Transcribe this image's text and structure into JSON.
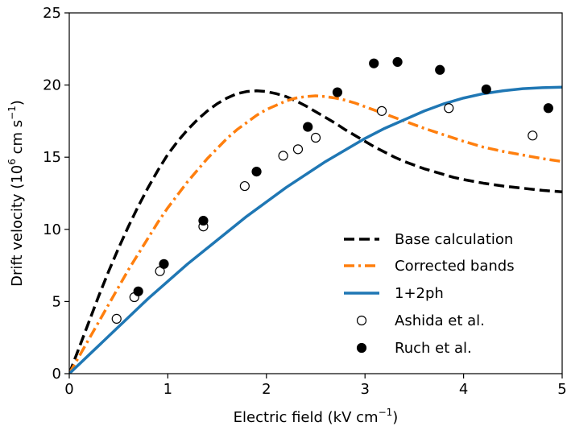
{
  "chart_data": {
    "type": "line",
    "xlabel": "Electric field (kV cm",
    "xlabel_sup": "−1",
    "xlabel_end": ")",
    "ylabel": "Drift velocity (10",
    "ylabel_sup1": "6",
    "ylabel_mid": " cm s",
    "ylabel_sup2": "−1",
    "ylabel_end": ")",
    "xlim": [
      0,
      5
    ],
    "ylim": [
      0,
      25
    ],
    "xticks": [
      0,
      1,
      2,
      3,
      4,
      5
    ],
    "yticks": [
      0,
      5,
      10,
      15,
      20,
      25
    ],
    "grid": false,
    "legend_position": "lower-right",
    "series": [
      {
        "name": "Base calculation",
        "style": "dashed",
        "color": "#000000",
        "points": [
          [
            0,
            0
          ],
          [
            0.1,
            1.8
          ],
          [
            0.2,
            3.6
          ],
          [
            0.3,
            5.4
          ],
          [
            0.4,
            7.1
          ],
          [
            0.5,
            8.7
          ],
          [
            0.6,
            10.2
          ],
          [
            0.7,
            11.6
          ],
          [
            0.8,
            12.9
          ],
          [
            0.9,
            14.1
          ],
          [
            1.0,
            15.2
          ],
          [
            1.1,
            16.1
          ],
          [
            1.2,
            16.9
          ],
          [
            1.3,
            17.6
          ],
          [
            1.4,
            18.2
          ],
          [
            1.5,
            18.7
          ],
          [
            1.6,
            19.1
          ],
          [
            1.7,
            19.4
          ],
          [
            1.8,
            19.55
          ],
          [
            1.9,
            19.6
          ],
          [
            2.0,
            19.55
          ],
          [
            2.1,
            19.4
          ],
          [
            2.2,
            19.2
          ],
          [
            2.3,
            18.9
          ],
          [
            2.4,
            18.55
          ],
          [
            2.5,
            18.15
          ],
          [
            2.6,
            17.75
          ],
          [
            2.7,
            17.35
          ],
          [
            2.8,
            16.9
          ],
          [
            2.9,
            16.5
          ],
          [
            3.0,
            16.1
          ],
          [
            3.1,
            15.7
          ],
          [
            3.2,
            15.35
          ],
          [
            3.3,
            15.0
          ],
          [
            3.4,
            14.7
          ],
          [
            3.5,
            14.45
          ],
          [
            3.6,
            14.2
          ],
          [
            3.7,
            14.0
          ],
          [
            3.8,
            13.8
          ],
          [
            3.9,
            13.6
          ],
          [
            4.0,
            13.45
          ],
          [
            4.2,
            13.2
          ],
          [
            4.4,
            13.0
          ],
          [
            4.6,
            12.85
          ],
          [
            4.8,
            12.7
          ],
          [
            5.0,
            12.6
          ]
        ]
      },
      {
        "name": "Corrected bands",
        "style": "dashdot",
        "color": "#ff7f0e",
        "points": [
          [
            0,
            0
          ],
          [
            0.1,
            1.2
          ],
          [
            0.2,
            2.4
          ],
          [
            0.3,
            3.6
          ],
          [
            0.4,
            4.8
          ],
          [
            0.5,
            6.0
          ],
          [
            0.6,
            7.2
          ],
          [
            0.7,
            8.3
          ],
          [
            0.8,
            9.4
          ],
          [
            0.9,
            10.5
          ],
          [
            1.0,
            11.5
          ],
          [
            1.1,
            12.4
          ],
          [
            1.2,
            13.3
          ],
          [
            1.3,
            14.1
          ],
          [
            1.4,
            14.9
          ],
          [
            1.5,
            15.6
          ],
          [
            1.6,
            16.3
          ],
          [
            1.7,
            16.9
          ],
          [
            1.8,
            17.4
          ],
          [
            1.9,
            17.9
          ],
          [
            2.0,
            18.3
          ],
          [
            2.1,
            18.6
          ],
          [
            2.2,
            18.9
          ],
          [
            2.3,
            19.1
          ],
          [
            2.4,
            19.2
          ],
          [
            2.5,
            19.25
          ],
          [
            2.6,
            19.2
          ],
          [
            2.7,
            19.1
          ],
          [
            2.8,
            18.95
          ],
          [
            2.9,
            18.75
          ],
          [
            3.0,
            18.5
          ],
          [
            3.2,
            18.0
          ],
          [
            3.4,
            17.5
          ],
          [
            3.6,
            17.0
          ],
          [
            3.8,
            16.55
          ],
          [
            4.0,
            16.1
          ],
          [
            4.2,
            15.7
          ],
          [
            4.4,
            15.4
          ],
          [
            4.6,
            15.15
          ],
          [
            4.8,
            14.9
          ],
          [
            5.0,
            14.7
          ]
        ]
      },
      {
        "name": "1+2ph",
        "style": "solid",
        "color": "#1f77b4",
        "points": [
          [
            0,
            0
          ],
          [
            0.2,
            1.3
          ],
          [
            0.4,
            2.6
          ],
          [
            0.6,
            3.9
          ],
          [
            0.8,
            5.2
          ],
          [
            1.0,
            6.4
          ],
          [
            1.2,
            7.6
          ],
          [
            1.4,
            8.7
          ],
          [
            1.6,
            9.8
          ],
          [
            1.8,
            10.9
          ],
          [
            2.0,
            11.9
          ],
          [
            2.2,
            12.9
          ],
          [
            2.4,
            13.8
          ],
          [
            2.6,
            14.7
          ],
          [
            2.8,
            15.5
          ],
          [
            3.0,
            16.3
          ],
          [
            3.2,
            17.0
          ],
          [
            3.4,
            17.6
          ],
          [
            3.6,
            18.2
          ],
          [
            3.8,
            18.7
          ],
          [
            4.0,
            19.1
          ],
          [
            4.2,
            19.4
          ],
          [
            4.4,
            19.6
          ],
          [
            4.6,
            19.75
          ],
          [
            4.8,
            19.82
          ],
          [
            5.0,
            19.85
          ]
        ]
      },
      {
        "name": "Ashida et al.",
        "style": "open-circle",
        "color": "#000000",
        "points": [
          [
            0.48,
            3.8
          ],
          [
            0.66,
            5.3
          ],
          [
            0.92,
            7.1
          ],
          [
            1.36,
            10.2
          ],
          [
            1.78,
            13.0
          ],
          [
            2.17,
            15.1
          ],
          [
            2.32,
            15.55
          ],
          [
            2.5,
            16.35
          ],
          [
            3.17,
            18.2
          ],
          [
            3.85,
            18.4
          ],
          [
            4.7,
            16.5
          ]
        ]
      },
      {
        "name": "Ruch et al.",
        "style": "filled-circle",
        "color": "#000000",
        "points": [
          [
            0.7,
            5.7
          ],
          [
            0.96,
            7.6
          ],
          [
            1.36,
            10.6
          ],
          [
            1.9,
            14.0
          ],
          [
            2.42,
            17.1
          ],
          [
            2.72,
            19.5
          ],
          [
            3.09,
            21.5
          ],
          [
            3.33,
            21.6
          ],
          [
            3.76,
            21.05
          ],
          [
            4.23,
            19.7
          ],
          [
            4.86,
            18.4
          ]
        ]
      }
    ]
  }
}
